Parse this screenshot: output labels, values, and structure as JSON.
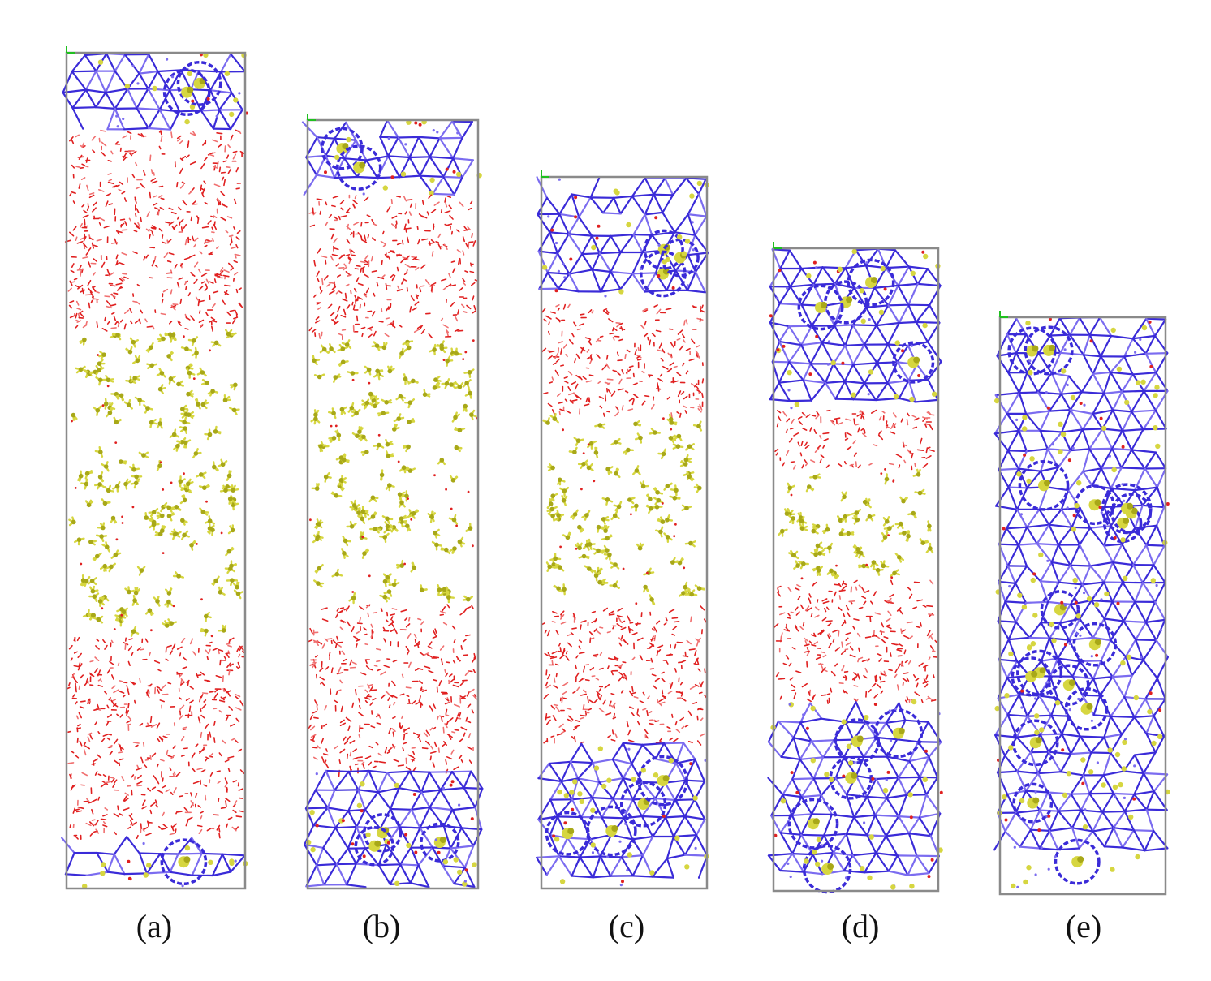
{
  "figure": {
    "panels": [
      {
        "label": "(a)",
        "layers": [
          "hydrate",
          "water",
          "gas",
          "water",
          "hydrate"
        ]
      },
      {
        "label": "(b)",
        "layers": [
          "hydrate",
          "water",
          "gas",
          "water",
          "hydrate"
        ]
      },
      {
        "label": "(c)",
        "layers": [
          "hydrate",
          "water",
          "gas",
          "water",
          "hydrate"
        ]
      },
      {
        "label": "(d)",
        "layers": [
          "hydrate",
          "water",
          "gas",
          "water",
          "hydrate"
        ]
      },
      {
        "label": "(e)",
        "layers": [
          "hydrate"
        ]
      }
    ],
    "colors": {
      "frame": "#8a8a8a",
      "cage_bond": "#3a2bd8",
      "cage_bond_light": "#7b6cf0",
      "guest": "#d6d640",
      "guest_dark": "#a8a818",
      "water": "#e02020",
      "water_light": "#f07070",
      "axis_green": "#20c020"
    }
  }
}
